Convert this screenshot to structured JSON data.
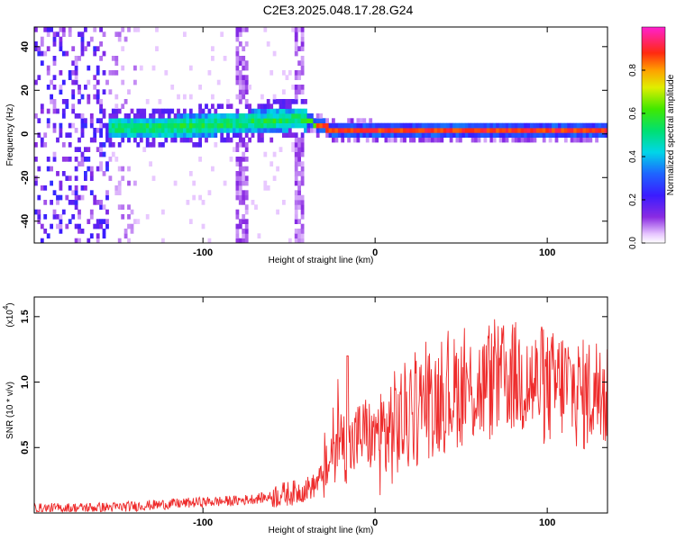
{
  "title": "C2E3.2025.048.17.28.G24",
  "chart_data": [
    {
      "type": "heatmap",
      "xlabel": "Height of straight line (km)",
      "ylabel": "Frequency (Hz)",
      "xlim": [
        -198,
        135
      ],
      "ylim": [
        -50,
        49
      ],
      "xticks": [
        -100,
        0,
        100
      ],
      "yticks": [
        -40,
        -20,
        0,
        20,
        40
      ],
      "colorbar": {
        "label": "Normalized spectral amplitude",
        "range": [
          0,
          1
        ],
        "ticks": [
          0.0,
          0.2,
          0.4,
          0.6,
          0.8
        ],
        "colormap": "rainbow (purple to red to magenta)"
      },
      "ridge": {
        "x": [
          -160,
          -140,
          -120,
          -100,
          -80,
          -60,
          -45,
          -40,
          -35,
          -30,
          -25,
          -20,
          -10,
          0,
          20,
          60,
          100,
          135
        ],
        "frequency": [
          1.5,
          2,
          2,
          3,
          4,
          5,
          6,
          5,
          3.5,
          2,
          1,
          0.5,
          0.2,
          0,
          0,
          0,
          0,
          0
        ]
      }
    },
    {
      "type": "line",
      "xlabel": "Height of straight line (km)",
      "ylabel": "SNR (10 * v/v)",
      "y_multiplier": "(x10",
      "y_multiplier_exponent": "4",
      "xlim": [
        -198,
        135
      ],
      "ylim": [
        0,
        1.65
      ],
      "xticks": [
        -100,
        0,
        100
      ],
      "yticks": [
        0.5,
        1.0,
        1.5
      ],
      "series": [
        {
          "color": "#ee2b2b",
          "x": [
            -198,
            -150,
            -100,
            -80,
            -60,
            -45,
            -35,
            -30,
            -25,
            -22,
            -15,
            -10,
            -5,
            0,
            10,
            20,
            30,
            40,
            50,
            60,
            70,
            80,
            90,
            100,
            110,
            120,
            130,
            135
          ],
          "y": [
            0.03,
            0.04,
            0.08,
            0.09,
            0.12,
            0.15,
            0.2,
            0.3,
            0.4,
            0.55,
            0.45,
            0.55,
            0.6,
            0.5,
            0.6,
            0.7,
            0.8,
            0.85,
            0.9,
            0.9,
            0.95,
            1.0,
            0.95,
            0.9,
            0.95,
            0.85,
            0.9,
            0.85
          ]
        }
      ]
    }
  ]
}
